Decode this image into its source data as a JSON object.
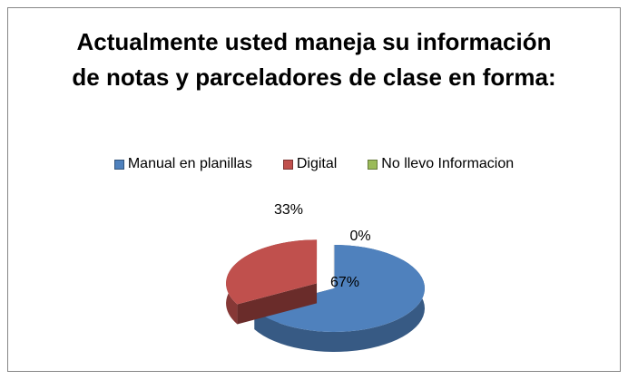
{
  "chart_data": {
    "type": "pie",
    "title": "Actualmente usted maneja su información de notas y parceladores de clase en forma:",
    "categories": [
      "Manual en planillas",
      "Digital",
      "No llevo Informacion"
    ],
    "values": [
      67,
      33,
      0
    ],
    "value_labels": [
      "67%",
      "33%",
      "0%"
    ],
    "colors": [
      "#4f81bd",
      "#c0504d",
      "#9bbb59"
    ],
    "legend": "top"
  }
}
